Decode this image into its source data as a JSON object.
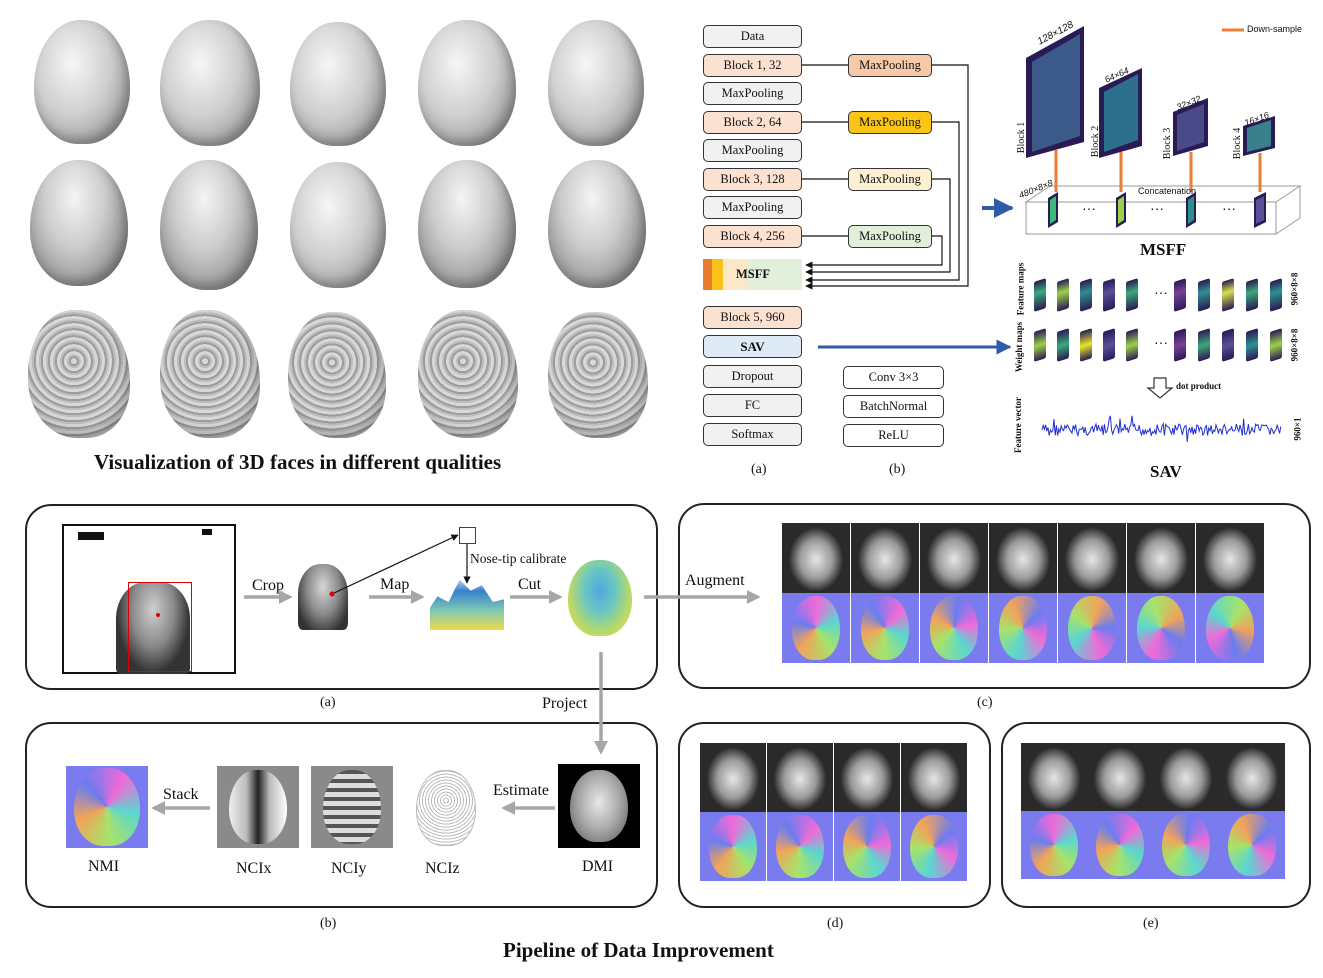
{
  "faces_section": {
    "title": "Visualization of 3D faces in different qualities"
  },
  "network": {
    "col_a": [
      "Data",
      "Block 1, 32",
      "MaxPooling",
      "Block 2, 64",
      "MaxPooling",
      "Block 3, 128",
      "MaxPooling",
      "Block 4, 256",
      "MSFF",
      "Block 5, 960",
      "SAV",
      "Dropout",
      "FC",
      "Softmax"
    ],
    "side_pools": [
      "MaxPooling",
      "MaxPooling",
      "MaxPooling",
      "MaxPooling"
    ],
    "legend_b": [
      "Conv 3×3",
      "BatchNormal",
      "ReLU"
    ],
    "label_a": "(a)",
    "label_b": "(b)"
  },
  "msff": {
    "legend": "Down-sample",
    "block_labels": [
      "Block 1",
      "Block 2",
      "Block 3",
      "Block 4"
    ],
    "sizes": [
      "128×128",
      "64×64",
      "32×32",
      "16×16"
    ],
    "concat_label": "Concatenation",
    "concat_size": "480×8×8",
    "dots": "···",
    "title": "MSFF"
  },
  "sav": {
    "feature_maps": "Feature maps",
    "weight_maps": "Weight maps",
    "feature_vector": "Feature vector",
    "dim1": "960×8×8",
    "dim2": "960×8×8",
    "dim3": "960×1",
    "dot_product": "dot product",
    "dots": "···",
    "title": "SAV"
  },
  "pipeline": {
    "title": "Pipeline of Data Improvement",
    "crop": "Crop",
    "map": "Map",
    "cut": "Cut",
    "nose_tip": "Nose-tip calibrate",
    "augment": "Augment",
    "project": "Project",
    "estimate": "Estimate",
    "stack": "Stack",
    "outputs": [
      "NMI",
      "NCIx",
      "NCIy",
      "NCIz",
      "DMI"
    ],
    "panel_labels": [
      "(a)",
      "(b)",
      "(c)",
      "(d)",
      "(e)"
    ]
  },
  "colors": {
    "orange_arrow": "#ed7d31",
    "blue_arrow": "#2e5ca8",
    "gray_arrow": "#a6a6a6"
  }
}
